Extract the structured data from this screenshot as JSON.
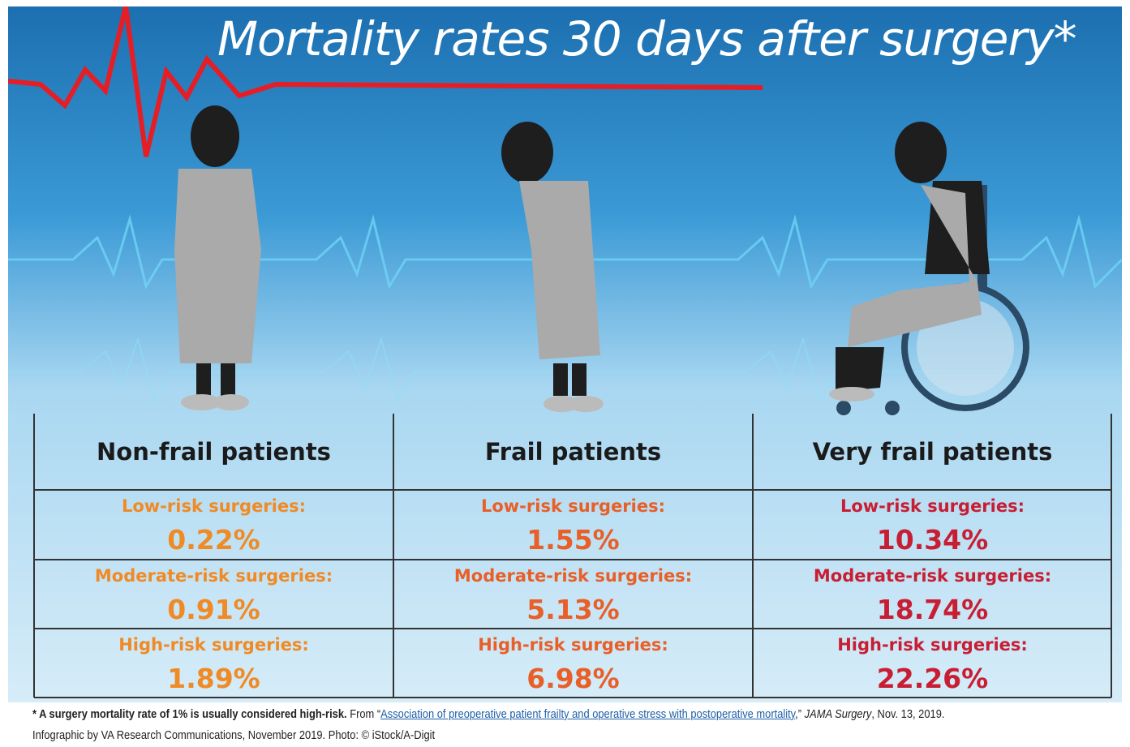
{
  "title": "Mortality rates 30 days after surgery*",
  "columns": [
    {
      "header": "Non-frail patients",
      "rows": [
        {
          "label": "Low-risk surgeries:",
          "value": "0.22%"
        },
        {
          "label": "Moderate-risk surgeries:",
          "value": "0.91%"
        },
        {
          "label": "High-risk surgeries:",
          "value": "1.89%"
        }
      ]
    },
    {
      "header": "Frail patients",
      "rows": [
        {
          "label": "Low-risk surgeries:",
          "value": "1.55%"
        },
        {
          "label": "Moderate-risk surgeries:",
          "value": "5.13%"
        },
        {
          "label": "High-risk surgeries:",
          "value": "6.98%"
        }
      ]
    },
    {
      "header": "Very frail patients",
      "rows": [
        {
          "label": "Low-risk surgeries:",
          "value": "10.34%"
        },
        {
          "label": "Moderate-risk surgeries:",
          "value": "18.74%"
        },
        {
          "label": "High-risk surgeries:",
          "value": "22.26%"
        }
      ]
    }
  ],
  "footer": {
    "note": "* A surgery mortality rate of 1% is usually considered high-risk.",
    "source_prefix": "From “",
    "source_link": "Association of preoperative patient frailty and operative stress with postoperative mortality",
    "source_suffix": ",”",
    "journal": "JAMA Surgery",
    "date": ", Nov. 13, 2019.",
    "credit": "Infographic by VA Research Communications, November 2019. Photo: © iStock/A-Digit"
  }
}
